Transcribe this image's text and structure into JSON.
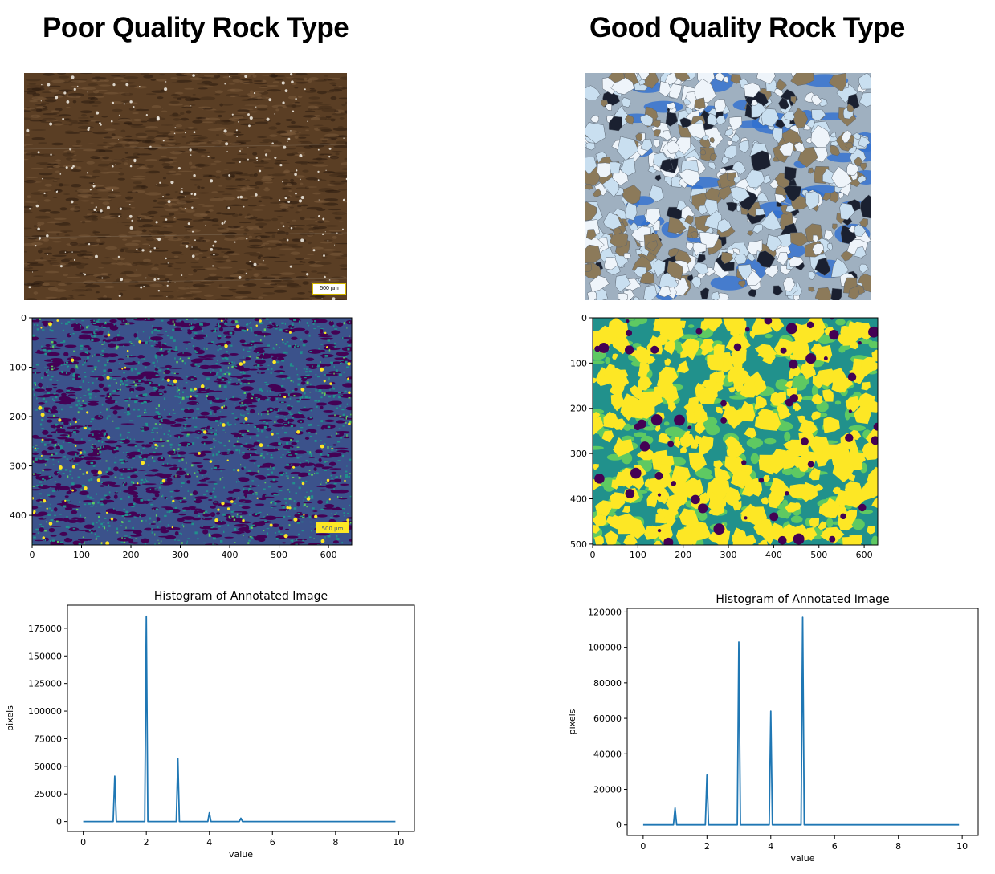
{
  "headings": {
    "left": "Poor Quality Rock Type",
    "right": "Good Quality Rock Type"
  },
  "photos": {
    "left": {
      "scale_bar": "500 µm",
      "palette": [
        "#5a3e24",
        "#3f2a17",
        "#7a5a3a",
        "#2a1a0e",
        "#f2efe6"
      ]
    },
    "right": {
      "palette": [
        "#c9dff0",
        "#eef4fa",
        "#2f6fd0",
        "#8c7a5a",
        "#1a2030"
      ]
    }
  },
  "segmented": {
    "left": {
      "scale_bar": "500 µm",
      "xticks": [
        0,
        100,
        200,
        300,
        400,
        500,
        600
      ],
      "yticks": [
        0,
        100,
        200,
        300,
        400
      ],
      "xlim": [
        0,
        647
      ],
      "ylim": [
        0,
        460
      ],
      "colors": [
        "#440154",
        "#3b528b",
        "#21918c",
        "#5ec962",
        "#fde725"
      ]
    },
    "right": {
      "xticks": [
        0,
        100,
        200,
        300,
        400,
        500,
        600
      ],
      "yticks": [
        0,
        100,
        200,
        300,
        400,
        500
      ],
      "xlim": [
        0,
        630
      ],
      "ylim": [
        0,
        502
      ],
      "colors": [
        "#440154",
        "#21918c",
        "#5ec962",
        "#fde725"
      ]
    }
  },
  "chart_data": [
    {
      "type": "line",
      "title": "Histogram of Annotated Image",
      "xlabel": "value",
      "ylabel": "pixels",
      "xlim": [
        -0.5,
        10.5
      ],
      "ylim": [
        -9000,
        196000
      ],
      "xticks": [
        0,
        2,
        4,
        6,
        8,
        10
      ],
      "yticks": [
        0,
        25000,
        50000,
        75000,
        100000,
        125000,
        150000,
        175000
      ],
      "ytick_labels": [
        "0",
        "25000",
        "50000",
        "75000",
        "100000",
        "125000",
        "150000",
        "175000"
      ],
      "color": "#1f77b4",
      "x": [
        0,
        0.95,
        1,
        1.05,
        1.95,
        2,
        2.05,
        2.95,
        3,
        3.05,
        3.95,
        4,
        4.05,
        4.95,
        5,
        5.05,
        9.9
      ],
      "y": [
        0,
        0,
        41000,
        0,
        0,
        186000,
        0,
        0,
        57000,
        0,
        0,
        8000,
        0,
        0,
        3000,
        0,
        0
      ]
    },
    {
      "type": "line",
      "title": "Histogram of Annotated Image",
      "xlabel": "value",
      "ylabel": "pixels",
      "xlim": [
        -0.5,
        10.5
      ],
      "ylim": [
        -6000,
        122000
      ],
      "xticks": [
        0,
        2,
        4,
        6,
        8,
        10
      ],
      "yticks": [
        0,
        20000,
        40000,
        60000,
        80000,
        100000,
        120000
      ],
      "ytick_labels": [
        "0",
        "20000",
        "40000",
        "60000",
        "80000",
        "100000",
        "120000"
      ],
      "color": "#1f77b4",
      "x": [
        0,
        0.95,
        1,
        1.05,
        1.95,
        2,
        2.05,
        2.95,
        3,
        3.05,
        3.95,
        4,
        4.05,
        4.95,
        5,
        5.05,
        9.9
      ],
      "y": [
        0,
        0,
        9500,
        0,
        0,
        28000,
        0,
        0,
        103000,
        0,
        0,
        64000,
        0,
        0,
        117000,
        0,
        0
      ]
    }
  ]
}
